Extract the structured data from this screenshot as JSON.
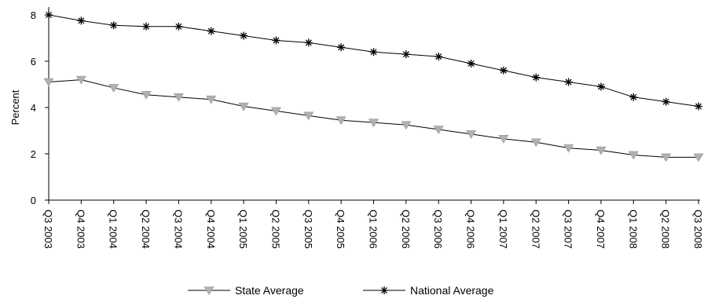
{
  "chart_data": {
    "type": "line",
    "title": "",
    "xlabel": "",
    "ylabel": "Percent",
    "ylim": [
      0,
      8
    ],
    "yticks": [
      0,
      2,
      4,
      6,
      8
    ],
    "categories": [
      "Q3 2003",
      "Q4 2003",
      "Q1 2004",
      "Q2 2004",
      "Q3 2004",
      "Q4 2004",
      "Q1 2005",
      "Q2 2005",
      "Q3 2005",
      "Q4 2005",
      "Q1 2006",
      "Q2 2006",
      "Q3 2006",
      "Q4 2006",
      "Q1 2007",
      "Q2 2007",
      "Q3 2007",
      "Q4 2007",
      "Q1 2008",
      "Q2 2008",
      "Q3 2008"
    ],
    "grid": false,
    "legend_position": "bottom",
    "series": [
      {
        "name": "State Average",
        "marker": "triangle-down",
        "line_color": "#000000",
        "marker_color": "#b0b0b0",
        "values": [
          5.1,
          5.2,
          4.85,
          4.55,
          4.45,
          4.35,
          4.05,
          3.85,
          3.65,
          3.45,
          3.35,
          3.25,
          3.05,
          2.85,
          2.65,
          2.5,
          2.25,
          2.15,
          1.95,
          1.85,
          1.85
        ]
      },
      {
        "name": "National Average",
        "marker": "star",
        "line_color": "#000000",
        "marker_color": "#000000",
        "values": [
          8.0,
          7.75,
          7.55,
          7.5,
          7.5,
          7.3,
          7.1,
          6.9,
          6.8,
          6.6,
          6.4,
          6.3,
          6.2,
          5.9,
          5.6,
          5.3,
          5.1,
          4.9,
          4.45,
          4.25,
          4.05
        ]
      }
    ]
  }
}
